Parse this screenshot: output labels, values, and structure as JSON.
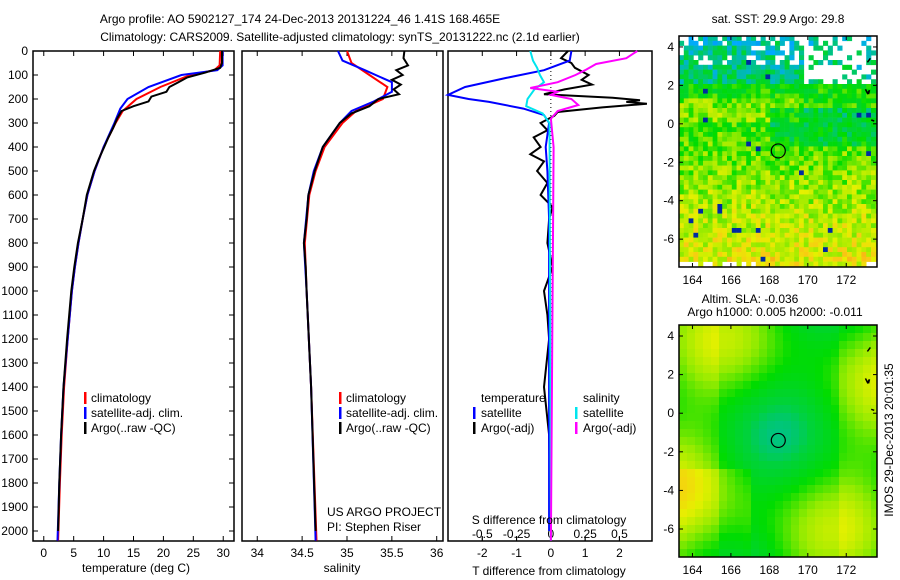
{
  "title": {
    "line1": "Argo profile: AO 5902127_174 24-Dec-2013 20131224_46 1.41S 168.465E",
    "line2": "Climatology: CARS2009. Satellite-adjusted climatology: synTS_20131222.nc (2.1d earlier)"
  },
  "colors": {
    "climatology": "#ff0000",
    "satellite": "#0000ff",
    "argo": "#000000",
    "s_satellite": "#00e5ee",
    "s_argo": "#ff00ff"
  },
  "credit": {
    "project": "US ARGO PROJECT",
    "pi": "PI: Stephen Riser"
  },
  "timestamp": "IMOS 29-Dec-2013 20:01:35",
  "chart_data": [
    {
      "type": "line",
      "id": "temperature",
      "xlabel": "temperature (deg C)",
      "ylabel": "",
      "xlim": [
        -1.8,
        31.8
      ],
      "ylim": [
        0,
        2040
      ],
      "xticks": [
        0,
        5,
        10,
        15,
        20,
        25,
        30
      ],
      "yticks": [
        0,
        100,
        200,
        300,
        400,
        500,
        600,
        700,
        800,
        900,
        1000,
        1100,
        1200,
        1300,
        1400,
        1500,
        1600,
        1700,
        1800,
        1900,
        2000
      ],
      "legend": [
        "climatology",
        "satellite-adj. clim.",
        "Argo(..raw -QC)"
      ],
      "legend_position": "lower-center",
      "series": [
        {
          "name": "climatology",
          "points": [
            [
              0,
              29.5
            ],
            [
              60,
              29.4
            ],
            [
              80,
              28.5
            ],
            [
              100,
              24.5
            ],
            [
              150,
              19.5
            ],
            [
              200,
              15.5
            ],
            [
              250,
              13.2
            ],
            [
              300,
              12
            ],
            [
              400,
              10
            ],
            [
              500,
              8.5
            ],
            [
              600,
              7.3
            ],
            [
              700,
              6.5
            ],
            [
              800,
              5.8
            ],
            [
              900,
              5.2
            ],
            [
              1000,
              4.7
            ],
            [
              1200,
              4
            ],
            [
              1400,
              3.4
            ],
            [
              1600,
              3
            ],
            [
              1800,
              2.7
            ],
            [
              2040,
              2.4
            ]
          ]
        },
        {
          "name": "satellite-adj. clim.",
          "points": [
            [
              0,
              29.9
            ],
            [
              60,
              29.9
            ],
            [
              80,
              29
            ],
            [
              100,
              23
            ],
            [
              150,
              17.5
            ],
            [
              200,
              14
            ],
            [
              240,
              12.8
            ],
            [
              300,
              11.8
            ],
            [
              400,
              10
            ],
            [
              500,
              8.5
            ],
            [
              600,
              7.3
            ],
            [
              700,
              6.5
            ],
            [
              800,
              5.8
            ],
            [
              900,
              5.2
            ],
            [
              1000,
              4.7
            ],
            [
              1200,
              4
            ],
            [
              1400,
              3.3
            ],
            [
              1600,
              2.9
            ],
            [
              1800,
              2.6
            ],
            [
              2040,
              2.3
            ]
          ]
        },
        {
          "name": "Argo(..raw -QC)",
          "points": [
            [
              0,
              29.8
            ],
            [
              50,
              29.8
            ],
            [
              70,
              29.5
            ],
            [
              90,
              27
            ],
            [
              110,
              24
            ],
            [
              130,
              22.5
            ],
            [
              150,
              21
            ],
            [
              170,
              20.5
            ],
            [
              190,
              18
            ],
            [
              210,
              17.5
            ],
            [
              230,
              15
            ],
            [
              250,
              13
            ],
            [
              280,
              12.3
            ],
            [
              320,
              11.6
            ],
            [
              360,
              10.8
            ],
            [
              400,
              10.1
            ],
            [
              450,
              9.2
            ],
            [
              500,
              8.4
            ],
            [
              600,
              7.2
            ],
            [
              700,
              6.5
            ],
            [
              800,
              5.7
            ],
            [
              900,
              5.1
            ],
            [
              1000,
              4.6
            ],
            [
              1200,
              3.9
            ],
            [
              1400,
              3.3
            ],
            [
              1600,
              2.9
            ],
            [
              1800,
              2.6
            ],
            [
              2000,
              2.4
            ]
          ]
        }
      ]
    },
    {
      "type": "line",
      "id": "salinity",
      "xlabel": "salinity",
      "xlim": [
        33.83,
        36.07
      ],
      "ylim": [
        0,
        2040
      ],
      "xticks": [
        34,
        34.5,
        35,
        35.5,
        36
      ],
      "xtick_labels": [
        "34",
        "34.5",
        "35",
        "35.5",
        "36"
      ],
      "legend": [
        "climatology",
        "satellite-adj. clim.",
        "Argo(..raw -QC)"
      ],
      "legend_position": "lower-right",
      "series": [
        {
          "name": "climatology",
          "points": [
            [
              0,
              35.0
            ],
            [
              50,
              35.05
            ],
            [
              100,
              35.25
            ],
            [
              150,
              35.45
            ],
            [
              200,
              35.4
            ],
            [
              250,
              35.1
            ],
            [
              300,
              34.95
            ],
            [
              400,
              34.75
            ],
            [
              500,
              34.65
            ],
            [
              600,
              34.58
            ],
            [
              800,
              34.53
            ],
            [
              1000,
              34.55
            ],
            [
              1400,
              34.6
            ],
            [
              2040,
              34.66
            ]
          ]
        },
        {
          "name": "satellite-adj. clim.",
          "points": [
            [
              0,
              34.9
            ],
            [
              40,
              34.95
            ],
            [
              80,
              35.2
            ],
            [
              130,
              35.5
            ],
            [
              170,
              35.5
            ],
            [
              210,
              35.3
            ],
            [
              250,
              35.05
            ],
            [
              300,
              34.92
            ],
            [
              400,
              34.73
            ],
            [
              500,
              34.63
            ],
            [
              600,
              34.57
            ],
            [
              800,
              34.52
            ],
            [
              1000,
              34.55
            ],
            [
              1400,
              34.6
            ],
            [
              2040,
              34.65
            ]
          ]
        },
        {
          "name": "Argo(..raw -QC)",
          "points": [
            [
              0,
              35.64
            ],
            [
              30,
              35.63
            ],
            [
              60,
              35.68
            ],
            [
              80,
              35.55
            ],
            [
              100,
              35.62
            ],
            [
              120,
              35.5
            ],
            [
              140,
              35.6
            ],
            [
              160,
              35.52
            ],
            [
              180,
              35.58
            ],
            [
              200,
              35.35
            ],
            [
              230,
              35.25
            ],
            [
              260,
              35.05
            ],
            [
              300,
              34.92
            ],
            [
              400,
              34.73
            ],
            [
              500,
              34.64
            ],
            [
              600,
              34.57
            ],
            [
              700,
              34.55
            ],
            [
              800,
              34.52
            ],
            [
              900,
              34.54
            ],
            [
              1000,
              34.55
            ],
            [
              1400,
              34.6
            ],
            [
              2000,
              34.65
            ]
          ]
        }
      ]
    },
    {
      "type": "line",
      "id": "difference",
      "xlabel": "T difference from climatology",
      "xlabel2": "S difference from climatology",
      "xlim": [
        -3,
        2.95
      ],
      "ylim": [
        0,
        2040
      ],
      "xticks": [
        -2,
        -1,
        0,
        1,
        2
      ],
      "s_ticks": [
        -0.5,
        -0.25,
        0,
        0.25,
        0.5
      ],
      "s_tick_labels": [
        "-0.5",
        "-0.25",
        "0",
        "0.25",
        "0.5"
      ],
      "s_scale_factor": 4,
      "legend_headers": [
        "temperature",
        "salinity"
      ],
      "legend": [
        "satellite",
        "Argo(-adj)",
        "satellite",
        "Argo(-adj)"
      ],
      "series": [
        {
          "name": "T satellite",
          "var": "T",
          "points": [
            [
              0,
              0.6
            ],
            [
              40,
              0.55
            ],
            [
              80,
              -0.2
            ],
            [
              112,
              -1.3
            ],
            [
              150,
              -2.5
            ],
            [
              183,
              -3.0
            ],
            [
              200,
              -2.4
            ],
            [
              212,
              -1.8
            ],
            [
              240,
              -0.8
            ],
            [
              267,
              -0.2
            ],
            [
              300,
              -0.05
            ],
            [
              400,
              -0.15
            ],
            [
              500,
              -0.1
            ],
            [
              700,
              -0.05
            ],
            [
              1000,
              -0.05
            ],
            [
              2000,
              -0.05
            ]
          ]
        },
        {
          "name": "T Argo(-adj)",
          "var": "T",
          "points": [
            [
              0,
              0.5
            ],
            [
              30,
              0.3
            ],
            [
              50,
              0.6
            ],
            [
              70,
              0.7
            ],
            [
              100,
              1.1
            ],
            [
              120,
              0.9
            ],
            [
              140,
              1.2
            ],
            [
              160,
              0.4
            ],
            [
              180,
              -0.2
            ],
            [
              195,
              1.8
            ],
            [
              205,
              2.6
            ],
            [
              212,
              2.2
            ],
            [
              220,
              2.8
            ],
            [
              235,
              1.5
            ],
            [
              254,
              0.2
            ],
            [
              270,
              0.1
            ],
            [
              300,
              -0.3
            ],
            [
              330,
              -0.1
            ],
            [
              360,
              -0.5
            ],
            [
              400,
              -0.3
            ],
            [
              430,
              -0.6
            ],
            [
              460,
              -0.2
            ],
            [
              500,
              -0.4
            ],
            [
              550,
              -0.1
            ],
            [
              600,
              -0.3
            ],
            [
              650,
              0.05
            ],
            [
              700,
              -0.05
            ],
            [
              800,
              -0.1
            ],
            [
              900,
              0.05
            ],
            [
              1000,
              -0.2
            ],
            [
              1100,
              -0.1
            ],
            [
              1200,
              -0.05
            ],
            [
              1400,
              -0.2
            ],
            [
              1600,
              -0.05
            ],
            [
              2000,
              0.0
            ]
          ]
        },
        {
          "name": "S satellite",
          "var": "S",
          "points": [
            [
              0,
              -0.15
            ],
            [
              40,
              -0.13
            ],
            [
              70,
              -0.1
            ],
            [
              100,
              -0.08
            ],
            [
              130,
              -0.05
            ],
            [
              160,
              -0.12
            ],
            [
              200,
              -0.17
            ],
            [
              230,
              -0.18
            ],
            [
              260,
              -0.06
            ],
            [
              300,
              -0.01
            ],
            [
              2040,
              0.0
            ]
          ]
        },
        {
          "name": "S Argo(-adj)",
          "var": "S",
          "points": [
            [
              0,
              0.63
            ],
            [
              30,
              0.55
            ],
            [
              54,
              0.33
            ],
            [
              80,
              0.25
            ],
            [
              100,
              0.18
            ],
            [
              130,
              0.05
            ],
            [
              154,
              -0.15
            ],
            [
              170,
              0.05
            ],
            [
              183,
              0.0
            ],
            [
              200,
              0.15
            ],
            [
              225,
              0.2
            ],
            [
              250,
              0.05
            ],
            [
              282,
              0.0
            ],
            [
              400,
              0.02
            ],
            [
              2040,
              0.0
            ]
          ]
        }
      ]
    },
    {
      "type": "heatmap",
      "id": "sst-map",
      "title": "sat. SST: 29.9 Argo: 29.8",
      "xlim": [
        163.3,
        173.6
      ],
      "ylim": [
        -7.45,
        4.57
      ],
      "xticks": [
        164,
        166,
        168,
        170,
        172
      ],
      "yticks": [
        4,
        2,
        0,
        -2,
        -4,
        -6
      ],
      "marker": {
        "lon": 168.465,
        "lat": -1.41
      }
    },
    {
      "type": "heatmap",
      "id": "sla-map",
      "title": "Altim. SLA: -0.036",
      "subtitle": "Argo h1000: 0.005 h2000: -0.011",
      "xlim": [
        163.3,
        173.6
      ],
      "ylim": [
        -7.45,
        4.57
      ],
      "xticks": [
        164,
        166,
        168,
        170,
        172
      ],
      "yticks": [
        4,
        2,
        0,
        -2,
        -4,
        -6
      ],
      "marker": {
        "lon": 168.465,
        "lat": -1.41
      }
    }
  ]
}
